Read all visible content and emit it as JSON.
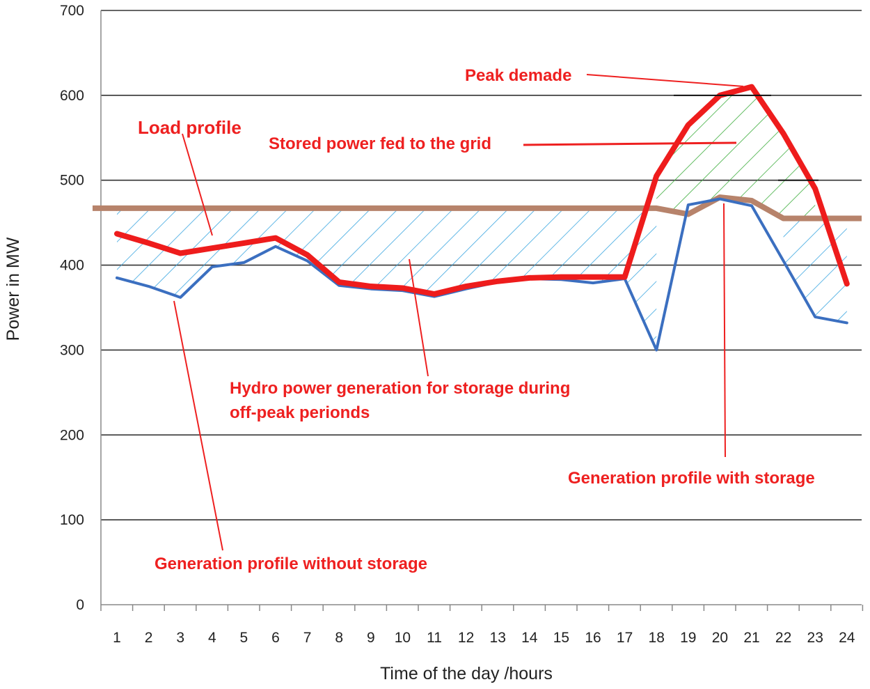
{
  "chart_data": {
    "type": "line",
    "title": "",
    "xlabel": "Time of the day /hours",
    "ylabel": "Power in MW",
    "ylim": [
      0,
      700
    ],
    "yticks": [
      0,
      100,
      200,
      300,
      400,
      500,
      600,
      700
    ],
    "grid": true,
    "categories": [
      1,
      2,
      3,
      4,
      5,
      6,
      7,
      8,
      9,
      10,
      11,
      12,
      13,
      14,
      15,
      16,
      17,
      18,
      19,
      20,
      21,
      22,
      23,
      24
    ],
    "series": [
      {
        "name": "Generation profile without storage",
        "color": "#3b6fc0",
        "values": [
          385,
          375,
          362,
          398,
          403,
          422,
          405,
          376,
          372,
          370,
          363,
          372,
          380,
          384,
          383,
          379,
          384,
          300,
          471,
          478,
          470,
          405,
          339,
          332
        ]
      },
      {
        "name": "Load profile",
        "color": "#ee1c1c",
        "values": [
          437,
          426,
          414,
          420,
          426,
          432,
          412,
          380,
          375,
          373,
          366,
          375,
          381,
          385,
          386,
          386,
          386,
          505,
          565,
          600,
          610,
          555,
          490,
          378
        ]
      },
      {
        "name": "Generation profile with storage",
        "color": "#b7836b",
        "values": [
          467,
          467,
          467,
          467,
          467,
          467,
          467,
          467,
          467,
          467,
          467,
          467,
          467,
          467,
          467,
          467,
          467,
          467,
          460,
          480,
          476,
          455,
          455,
          455
        ]
      }
    ],
    "annotations": {
      "peak": "Peak demade",
      "load": "Load profile",
      "stored": "Stored power fed to the grid",
      "hydro_line1": "Hydro power generation for storage during",
      "hydro_line2": "off-peak perionds",
      "with_storage": "Generation profile with storage",
      "without_storage": "Generation profile without storage"
    },
    "colors": {
      "annotation": "#ee2020",
      "hatch_offpeak": "#3aa6e0",
      "hatch_peak": "#3fae3f",
      "grid": "#333333",
      "axis": "#888888"
    }
  }
}
